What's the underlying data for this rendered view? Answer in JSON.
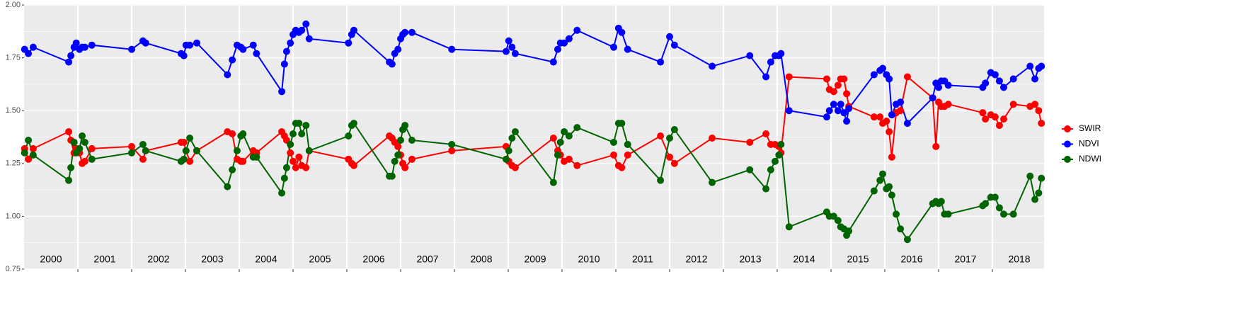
{
  "chart_data": {
    "type": "line",
    "x": [
      2000.01,
      2000.08,
      2000.17,
      2000.83,
      2000.87,
      2000.93,
      2000.97,
      2001.03,
      2001.08,
      2001.13,
      2001.26,
      2002.0,
      2002.21,
      2002.26,
      2002.92,
      2002.97,
      2003.01,
      2003.08,
      2003.21,
      2003.78,
      2003.87,
      2003.96,
      2004.03,
      2004.07,
      2004.26,
      2004.32,
      2004.79,
      2004.84,
      2004.88,
      2004.95,
      2005.0,
      2005.05,
      2005.11,
      2005.16,
      2005.24,
      2005.3,
      2006.03,
      2006.09,
      2006.13,
      2006.79,
      2006.84,
      2006.89,
      2006.95,
      2007.0,
      2007.04,
      2007.08,
      2007.21,
      2007.95,
      2008.96,
      2009.01,
      2009.07,
      2009.13,
      2009.84,
      2009.92,
      2009.97,
      2010.04,
      2010.13,
      2010.28,
      2010.96,
      2011.05,
      2011.11,
      2011.22,
      2011.83,
      2012.0,
      2012.09,
      2012.79,
      2013.49,
      2013.79,
      2013.88,
      2013.96,
      2014.03,
      2014.07,
      2014.22,
      2014.92,
      2014.97,
      2015.05,
      2015.13,
      2015.18,
      2015.24,
      2015.29,
      2015.33,
      2015.8,
      2015.91,
      2015.96,
      2016.03,
      2016.08,
      2016.13,
      2016.21,
      2016.29,
      2016.42,
      2016.89,
      2016.95,
      2017.0,
      2017.05,
      2017.11,
      2017.18,
      2017.82,
      2017.87,
      2017.97,
      2018.05,
      2018.13,
      2018.21,
      2018.39,
      2018.7,
      2018.79,
      2018.86,
      2018.91
    ],
    "series": [
      {
        "name": "SWIR",
        "color": "#ff0000",
        "values": [
          1.32,
          1.27,
          1.32,
          1.4,
          1.36,
          1.3,
          1.32,
          1.3,
          1.25,
          1.26,
          1.32,
          1.33,
          1.27,
          1.31,
          1.35,
          1.35,
          1.31,
          1.26,
          1.31,
          1.4,
          1.39,
          1.27,
          1.26,
          1.26,
          1.31,
          1.3,
          1.4,
          1.38,
          1.36,
          1.3,
          1.26,
          1.23,
          1.28,
          1.24,
          1.23,
          1.31,
          1.27,
          1.25,
          1.24,
          1.38,
          1.37,
          1.35,
          1.33,
          1.29,
          1.25,
          1.23,
          1.27,
          1.31,
          1.33,
          1.26,
          1.24,
          1.23,
          1.37,
          1.31,
          1.29,
          1.26,
          1.27,
          1.24,
          1.29,
          1.24,
          1.23,
          1.29,
          1.38,
          1.28,
          1.25,
          1.37,
          1.35,
          1.39,
          1.34,
          1.34,
          1.33,
          1.3,
          1.66,
          1.65,
          1.6,
          1.59,
          1.62,
          1.65,
          1.65,
          1.58,
          1.52,
          1.47,
          1.47,
          1.44,
          1.45,
          1.4,
          1.28,
          1.49,
          1.5,
          1.66,
          1.56,
          1.33,
          1.54,
          1.52,
          1.52,
          1.53,
          1.49,
          1.46,
          1.48,
          1.47,
          1.43,
          1.46,
          1.53,
          1.52,
          1.53,
          1.5,
          1.44
        ]
      },
      {
        "name": "NDVI",
        "color": "#0000ff",
        "values": [
          1.79,
          1.77,
          1.8,
          1.73,
          1.76,
          1.8,
          1.82,
          1.79,
          1.8,
          1.8,
          1.81,
          1.79,
          1.83,
          1.82,
          1.77,
          1.76,
          1.81,
          1.81,
          1.82,
          1.67,
          1.74,
          1.81,
          1.8,
          1.79,
          1.81,
          1.77,
          1.59,
          1.72,
          1.78,
          1.82,
          1.86,
          1.88,
          1.87,
          1.88,
          1.91,
          1.84,
          1.82,
          1.86,
          1.88,
          1.73,
          1.72,
          1.77,
          1.79,
          1.84,
          1.86,
          1.87,
          1.87,
          1.79,
          1.78,
          1.83,
          1.8,
          1.77,
          1.73,
          1.79,
          1.82,
          1.82,
          1.84,
          1.88,
          1.8,
          1.89,
          1.87,
          1.79,
          1.73,
          1.85,
          1.81,
          1.71,
          1.76,
          1.66,
          1.73,
          1.76,
          1.76,
          1.77,
          1.5,
          1.47,
          1.5,
          1.53,
          1.5,
          1.53,
          1.49,
          1.45,
          1.51,
          1.67,
          1.69,
          1.7,
          1.67,
          1.65,
          1.48,
          1.53,
          1.54,
          1.44,
          1.56,
          1.63,
          1.61,
          1.64,
          1.64,
          1.62,
          1.61,
          1.63,
          1.68,
          1.67,
          1.64,
          1.61,
          1.65,
          1.71,
          1.65,
          1.7,
          1.71
        ]
      },
      {
        "name": "NDWI",
        "color": "#006400",
        "values": [
          1.3,
          1.36,
          1.29,
          1.17,
          1.23,
          1.35,
          1.3,
          1.32,
          1.38,
          1.35,
          1.27,
          1.3,
          1.34,
          1.31,
          1.26,
          1.27,
          1.31,
          1.37,
          1.31,
          1.14,
          1.22,
          1.31,
          1.38,
          1.39,
          1.28,
          1.28,
          1.11,
          1.18,
          1.23,
          1.34,
          1.39,
          1.44,
          1.44,
          1.39,
          1.43,
          1.31,
          1.38,
          1.43,
          1.44,
          1.19,
          1.19,
          1.26,
          1.29,
          1.36,
          1.41,
          1.43,
          1.36,
          1.34,
          1.27,
          1.31,
          1.37,
          1.4,
          1.16,
          1.29,
          1.35,
          1.4,
          1.38,
          1.42,
          1.35,
          1.44,
          1.44,
          1.34,
          1.17,
          1.37,
          1.41,
          1.16,
          1.22,
          1.13,
          1.22,
          1.26,
          1.29,
          1.34,
          0.95,
          1.02,
          1.0,
          1.0,
          0.98,
          0.95,
          0.94,
          0.91,
          0.93,
          1.12,
          1.17,
          1.2,
          1.13,
          1.14,
          1.1,
          1.01,
          0.94,
          0.89,
          1.06,
          1.07,
          1.06,
          1.07,
          1.01,
          1.01,
          1.05,
          1.06,
          1.09,
          1.09,
          1.04,
          1.01,
          1.01,
          1.19,
          1.08,
          1.11,
          1.18
        ]
      }
    ],
    "xlim": [
      2000.0,
      2018.96
    ],
    "xticks": [
      2001,
      2002,
      2003,
      2004,
      2005,
      2006,
      2007,
      2008,
      2009,
      2010,
      2011,
      2012,
      2013,
      2014,
      2015,
      2016,
      2017,
      2018
    ],
    "year_labels": [
      {
        "value": 2000.5,
        "label": "2000"
      },
      {
        "value": 2001.5,
        "label": "2001"
      },
      {
        "value": 2002.5,
        "label": "2002"
      },
      {
        "value": 2003.5,
        "label": "2003"
      },
      {
        "value": 2004.5,
        "label": "2004"
      },
      {
        "value": 2005.5,
        "label": "2005"
      },
      {
        "value": 2006.5,
        "label": "2006"
      },
      {
        "value": 2007.5,
        "label": "2007"
      },
      {
        "value": 2008.5,
        "label": "2008"
      },
      {
        "value": 2009.5,
        "label": "2009"
      },
      {
        "value": 2010.5,
        "label": "2010"
      },
      {
        "value": 2011.5,
        "label": "2011"
      },
      {
        "value": 2012.5,
        "label": "2012"
      },
      {
        "value": 2013.5,
        "label": "2013"
      },
      {
        "value": 2014.5,
        "label": "2014"
      },
      {
        "value": 2015.5,
        "label": "2015"
      },
      {
        "value": 2016.5,
        "label": "2016"
      },
      {
        "value": 2017.5,
        "label": "2017"
      },
      {
        "value": 2018.5,
        "label": "2018"
      }
    ],
    "ylim": [
      0.75,
      2.0
    ],
    "yticks": [
      {
        "value": 0.75,
        "label": "0.75"
      },
      {
        "value": 1.0,
        "label": "1.00"
      },
      {
        "value": 1.25,
        "label": "1.25"
      },
      {
        "value": 1.5,
        "label": "1.50"
      },
      {
        "value": 1.75,
        "label": "1.75"
      },
      {
        "value": 2.0,
        "label": "2.00"
      }
    ],
    "yminor": [
      0.875,
      1.125,
      1.375,
      1.625,
      1.875
    ],
    "grid": true,
    "legend": "right"
  }
}
